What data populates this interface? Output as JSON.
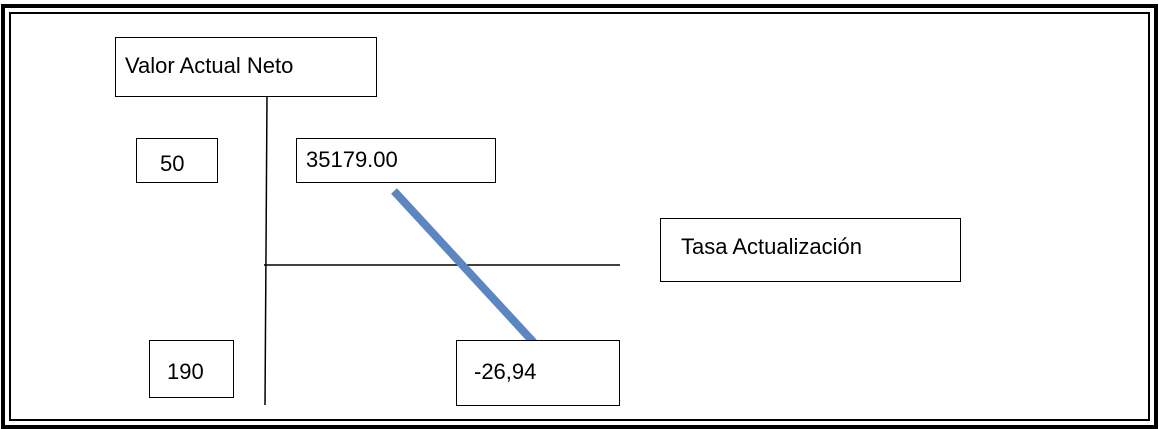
{
  "diagram": {
    "title_box": "Valor Actual Neto",
    "axis_box": "Tasa Actualización",
    "left_values": {
      "top": "50",
      "bottom": "190"
    },
    "right_values": {
      "top": "35179.00",
      "bottom": "-26,94"
    },
    "colors": {
      "border": "#000000",
      "line": "#5b86c2"
    }
  }
}
